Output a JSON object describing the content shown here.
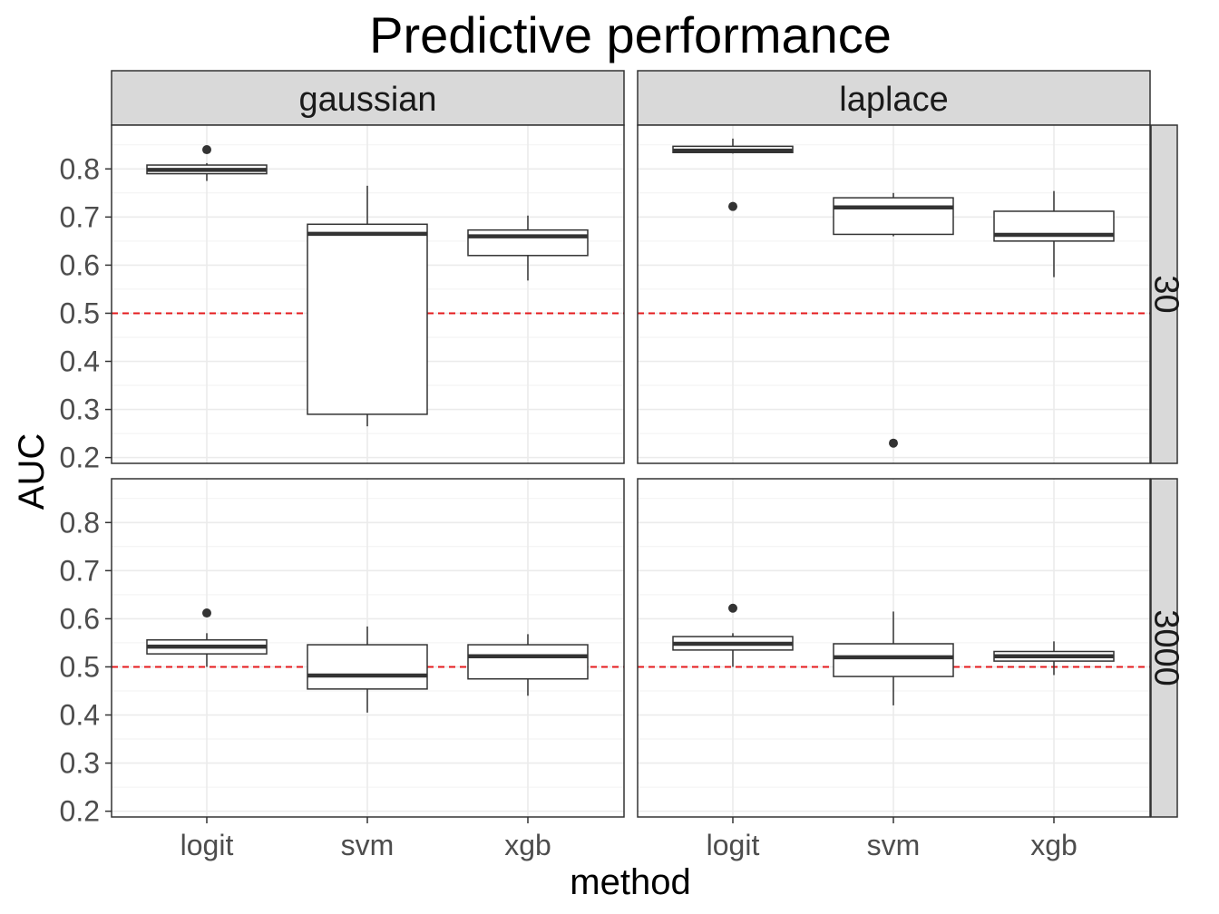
{
  "chart_data": {
    "type": "boxplot",
    "title": "Predictive performance",
    "xlabel": "method",
    "ylabel": "AUC",
    "ylim": [
      0.2,
      0.9
    ],
    "y_ticks": [
      "0.2",
      "0.3",
      "0.4",
      "0.5",
      "0.6",
      "0.7",
      "0.8"
    ],
    "categories": [
      "logit",
      "svm",
      "xgb"
    ],
    "facet_cols": [
      "gaussian",
      "laplace"
    ],
    "facet_rows": [
      "30",
      "3000"
    ],
    "reference_line": {
      "y": 0.5,
      "color": "#e41a1c",
      "style": "dashed"
    },
    "grid": true,
    "panels": [
      {
        "col": "gaussian",
        "row": "30",
        "boxes": [
          {
            "category": "logit",
            "whisker_low": 0.775,
            "q1": 0.79,
            "median": 0.798,
            "q3": 0.808,
            "whisker_high": 0.812,
            "outliers": [
              0.84
            ]
          },
          {
            "category": "svm",
            "whisker_low": 0.265,
            "q1": 0.29,
            "median": 0.665,
            "q3": 0.685,
            "whisker_high": 0.765,
            "outliers": []
          },
          {
            "category": "xgb",
            "whisker_low": 0.568,
            "q1": 0.62,
            "median": 0.66,
            "q3": 0.673,
            "whisker_high": 0.703,
            "outliers": []
          }
        ]
      },
      {
        "col": "laplace",
        "row": "30",
        "boxes": [
          {
            "category": "logit",
            "whisker_low": 0.832,
            "q1": 0.834,
            "median": 0.838,
            "q3": 0.847,
            "whisker_high": 0.863,
            "outliers": [
              0.722
            ]
          },
          {
            "category": "svm",
            "whisker_low": 0.66,
            "q1": 0.664,
            "median": 0.72,
            "q3": 0.74,
            "whisker_high": 0.75,
            "outliers": [
              0.23
            ]
          },
          {
            "category": "xgb",
            "whisker_low": 0.575,
            "q1": 0.65,
            "median": 0.663,
            "q3": 0.712,
            "whisker_high": 0.754,
            "outliers": []
          }
        ]
      },
      {
        "col": "gaussian",
        "row": "3000",
        "boxes": [
          {
            "category": "logit",
            "whisker_low": 0.5,
            "q1": 0.527,
            "median": 0.542,
            "q3": 0.556,
            "whisker_high": 0.57,
            "outliers": [
              0.612
            ]
          },
          {
            "category": "svm",
            "whisker_low": 0.405,
            "q1": 0.454,
            "median": 0.482,
            "q3": 0.546,
            "whisker_high": 0.584,
            "outliers": []
          },
          {
            "category": "xgb",
            "whisker_low": 0.44,
            "q1": 0.475,
            "median": 0.522,
            "q3": 0.546,
            "whisker_high": 0.568,
            "outliers": []
          }
        ]
      },
      {
        "col": "laplace",
        "row": "3000",
        "boxes": [
          {
            "category": "logit",
            "whisker_low": 0.5,
            "q1": 0.535,
            "median": 0.548,
            "q3": 0.563,
            "whisker_high": 0.57,
            "outliers": [
              0.622
            ]
          },
          {
            "category": "svm",
            "whisker_low": 0.42,
            "q1": 0.48,
            "median": 0.52,
            "q3": 0.548,
            "whisker_high": 0.615,
            "outliers": []
          },
          {
            "category": "xgb",
            "whisker_low": 0.483,
            "q1": 0.512,
            "median": 0.522,
            "q3": 0.532,
            "whisker_high": 0.553,
            "outliers": []
          }
        ]
      }
    ]
  }
}
